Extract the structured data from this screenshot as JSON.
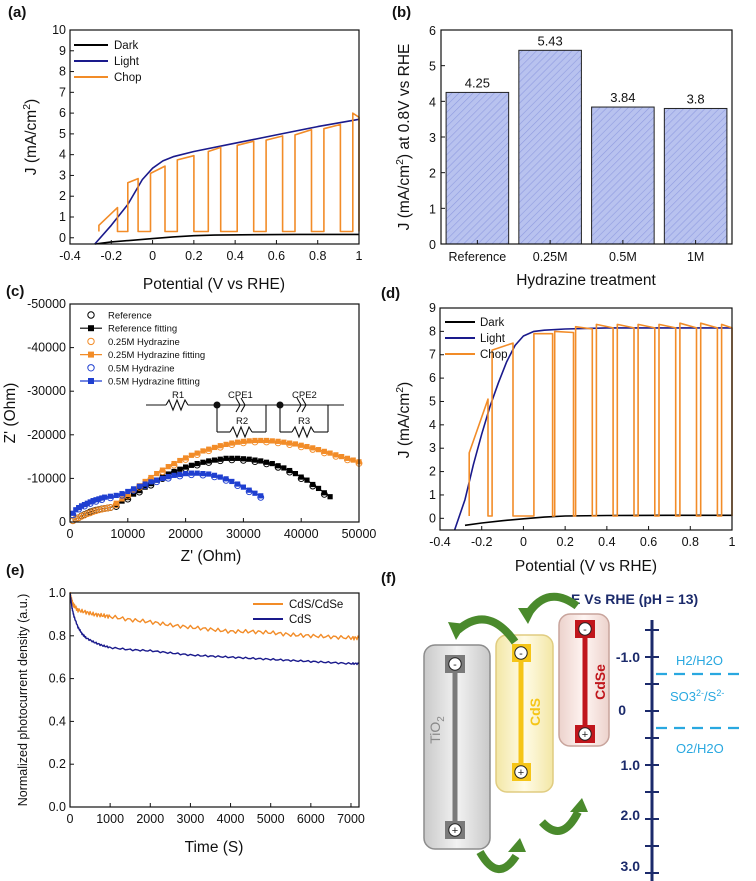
{
  "chart_data": [
    {
      "panel": "(a)",
      "type": "line",
      "xlabel": "Potential (V vs RHE)",
      "ylabel": "J (mA/cm2)",
      "xlim": [
        -0.4,
        1.0
      ],
      "ylim": [
        -0.3,
        10
      ],
      "xticks": [
        -0.4,
        -0.2,
        0,
        0.2,
        0.4,
        0.6,
        0.8,
        1
      ],
      "xtick_labels": [
        "-0.4",
        "-0.2",
        "0",
        "0.2",
        "0.4",
        "0.6",
        "0.8",
        "1"
      ],
      "yticks": [
        0,
        1,
        2,
        3,
        4,
        5,
        6,
        7,
        8,
        9,
        10
      ],
      "ytick_labels": [
        "0",
        "1",
        "2",
        "3",
        "4",
        "5",
        "6",
        "7",
        "8",
        "9",
        "10"
      ],
      "legend": [
        "Dark",
        "Light",
        "Chop"
      ],
      "colors": {
        "Dark": "#000000",
        "Light": "#1a1a8c",
        "Chop": "#f28c28"
      },
      "series": [
        {
          "name": "Dark",
          "x": [
            -0.28,
            -0.2,
            -0.1,
            0,
            0.1,
            0.2,
            0.3,
            0.5,
            0.7,
            1.0
          ],
          "y": [
            -0.3,
            -0.2,
            -0.12,
            -0.04,
            0.04,
            0.1,
            0.13,
            0.15,
            0.16,
            0.16
          ]
        },
        {
          "name": "Light",
          "x": [
            -0.28,
            -0.2,
            -0.12,
            -0.05,
            0,
            0.05,
            0.1,
            0.2,
            0.4,
            0.6,
            0.8,
            1.0
          ],
          "y": [
            -0.3,
            0.6,
            1.6,
            2.8,
            3.35,
            3.7,
            3.9,
            4.15,
            4.55,
            4.95,
            5.35,
            5.7
          ]
        },
        {
          "name": "Chop",
          "on": [
            [
              -0.26,
              -0.17
            ],
            [
              -0.12,
              -0.07
            ],
            [
              -0.01,
              0.06
            ],
            [
              0.12,
              0.2
            ],
            [
              0.27,
              0.33
            ],
            [
              0.41,
              0.49
            ],
            [
              0.55,
              0.63
            ],
            [
              0.69,
              0.77
            ],
            [
              0.83,
              0.91
            ],
            [
              0.97,
              1.0
            ]
          ],
          "on_y": [
            [
              0.6,
              1.45
            ],
            [
              2.65,
              2.85
            ],
            [
              3.1,
              3.45
            ],
            [
              3.75,
              3.95
            ],
            [
              4.15,
              4.35
            ],
            [
              4.45,
              4.65
            ],
            [
              4.7,
              4.9
            ],
            [
              4.95,
              5.2
            ],
            [
              5.25,
              5.45
            ],
            [
              6.0,
              5.8
            ]
          ],
          "off_y": 0.3
        }
      ]
    },
    {
      "panel": "(b)",
      "type": "bar",
      "xlabel": "Hydrazine treatment",
      "ylabel": "J (mA/cm2) at 0.8V vs RHE",
      "categories": [
        "Reference",
        "0.25M",
        "0.5M",
        "1M"
      ],
      "values": [
        4.25,
        5.43,
        3.84,
        3.8
      ],
      "value_labels": [
        "4.25",
        "5.43",
        "3.84",
        "3.8"
      ],
      "ylim": [
        0,
        6
      ],
      "yticks": [
        0,
        1,
        2,
        3,
        4,
        5,
        6
      ],
      "ytick_labels": [
        "0",
        "1",
        "2",
        "3",
        "4",
        "5",
        "6"
      ],
      "bar_color": "#a9b4e8"
    },
    {
      "panel": "(c)",
      "type": "scatter",
      "xlabel": "Z' (Ohm)",
      "ylabel": "Z' (Ohm)",
      "xlim": [
        0,
        50000
      ],
      "ylim": [
        0,
        -50000
      ],
      "xticks": [
        0,
        10000,
        20000,
        30000,
        40000,
        50000
      ],
      "xtick_labels": [
        "0",
        "10000",
        "20000",
        "30000",
        "40000",
        "50000"
      ],
      "yticks": [
        0,
        -10000,
        -20000,
        -30000,
        -40000,
        -50000
      ],
      "ytick_labels": [
        "0",
        "-10000",
        "-20000",
        "-30000",
        "-40000",
        "-50000"
      ],
      "legend": [
        "Reference",
        "Reference fitting",
        "0.25M Hydrazine",
        "0.25M Hydrazine fitting",
        "0.5M Hydrazine",
        "0.5M Hydrazine fitting"
      ],
      "colors": {
        "Reference": "#000000",
        "0.25M": "#f28c28",
        "0.5M": "#1f3fd0"
      },
      "circuit": {
        "elements": [
          "R1",
          "CPE1",
          "R2",
          "CPE2",
          "R3"
        ]
      },
      "series": [
        {
          "name": "Reference",
          "x": [
            500,
            1000,
            1500,
            2000,
            2500,
            3000,
            3500,
            4000,
            4500,
            5000,
            5500,
            6000,
            6500,
            7000,
            8000,
            9000,
            10000,
            11000,
            12000,
            13000,
            14000,
            15000,
            16000,
            17000,
            18000,
            19000,
            20000,
            21000,
            22000,
            23000,
            24000,
            25000,
            26000,
            27000,
            28000,
            29000,
            30000,
            31000,
            32000,
            33000,
            34000,
            35000,
            36000,
            37000,
            38000,
            39000,
            40000,
            41000,
            42000,
            43000,
            44000,
            45000
          ],
          "y": [
            -300,
            -700,
            -1000,
            -1400,
            -1700,
            -2000,
            -2300,
            -2500,
            -2700,
            -2850,
            -3000,
            -3100,
            -3200,
            -3300,
            -3900,
            -4800,
            -5600,
            -6400,
            -7200,
            -8000,
            -8800,
            -9600,
            -10300,
            -11000,
            -11600,
            -12100,
            -12600,
            -13000,
            -13400,
            -13700,
            -14000,
            -14200,
            -14400,
            -14600,
            -14600,
            -14600,
            -14500,
            -14400,
            -14200,
            -14000,
            -13700,
            -13400,
            -12900,
            -12400,
            -11800,
            -11100,
            -10300,
            -9600,
            -8600,
            -7700,
            -6700,
            -5800
          ]
        },
        {
          "name": "0.25M Hydrazine",
          "x": [
            500,
            1000,
            1500,
            2000,
            2500,
            3000,
            3500,
            4000,
            4500,
            5000,
            5500,
            6000,
            6500,
            7000,
            8000,
            9000,
            10000,
            11000,
            12000,
            13000,
            14000,
            15000,
            16000,
            17000,
            18000,
            19000,
            20000,
            21000,
            22000,
            23000,
            24000,
            25000,
            26000,
            27000,
            28000,
            29000,
            30000,
            31000,
            32000,
            33000,
            34000,
            35000,
            36000,
            37000,
            38000,
            39000,
            40000,
            41000,
            42000,
            43000,
            44000,
            45000,
            46000,
            47000,
            48000,
            49000,
            50000
          ],
          "y": [
            -300,
            -700,
            -1000,
            -1300,
            -1600,
            -1900,
            -2100,
            -2400,
            -2600,
            -2800,
            -2950,
            -3100,
            -3200,
            -3350,
            -4300,
            -5300,
            -6300,
            -7300,
            -8300,
            -9300,
            -10200,
            -11100,
            -11900,
            -12700,
            -13400,
            -14100,
            -14700,
            -15300,
            -15800,
            -16300,
            -16700,
            -17100,
            -17500,
            -17800,
            -18100,
            -18300,
            -18500,
            -18600,
            -18700,
            -18700,
            -18700,
            -18600,
            -18500,
            -18300,
            -18100,
            -17900,
            -17600,
            -17300,
            -17000,
            -16600,
            -16200,
            -15800,
            -15400,
            -15000,
            -14600,
            -14200,
            -13800
          ]
        },
        {
          "name": "0.5M Hydrazine",
          "x": [
            500,
            1000,
            1500,
            2000,
            2500,
            3000,
            3500,
            4000,
            4500,
            5000,
            5500,
            6000,
            7000,
            8000,
            9000,
            10000,
            11000,
            12000,
            13000,
            14000,
            15000,
            16000,
            17000,
            18000,
            19000,
            20000,
            21000,
            22000,
            23000,
            24000,
            25000,
            26000,
            27000,
            28000,
            29000,
            30000,
            31000,
            32000,
            33000
          ],
          "y": [
            -2000,
            -2800,
            -3300,
            -3700,
            -4000,
            -4300,
            -4600,
            -4900,
            -5100,
            -5300,
            -5500,
            -5700,
            -5900,
            -6100,
            -6500,
            -7000,
            -7600,
            -8200,
            -8700,
            -9200,
            -9600,
            -10000,
            -10400,
            -10700,
            -10900,
            -11100,
            -11200,
            -11200,
            -11100,
            -11000,
            -10700,
            -10300,
            -9900,
            -9300,
            -8700,
            -8000,
            -7300,
            -6600,
            -6000
          ]
        }
      ]
    },
    {
      "panel": "(d)",
      "type": "line",
      "xlabel": "Potential (V vs RHE)",
      "ylabel": "J (mA/cm2)",
      "xlim": [
        -0.4,
        1.0
      ],
      "ylim": [
        -0.5,
        9
      ],
      "xticks": [
        -0.4,
        -0.2,
        0,
        0.2,
        0.4,
        0.6,
        0.8,
        1
      ],
      "xtick_labels": [
        "-0.4",
        "-0.2",
        "0",
        "0.2",
        "0.4",
        "0.6",
        "0.8",
        "1"
      ],
      "yticks": [
        0,
        1,
        2,
        3,
        4,
        5,
        6,
        7,
        8,
        9
      ],
      "ytick_labels": [
        "0",
        "1",
        "2",
        "3",
        "4",
        "5",
        "6",
        "7",
        "8",
        "9"
      ],
      "legend": [
        "Dark",
        "Light",
        "Chop"
      ],
      "colors": {
        "Dark": "#000000",
        "Light": "#1a1a8c",
        "Chop": "#f28c28"
      },
      "series": [
        {
          "name": "Dark",
          "x": [
            -0.28,
            -0.2,
            -0.1,
            0,
            0.1,
            0.2,
            0.4,
            0.7,
            1.0
          ],
          "y": [
            -0.3,
            -0.2,
            -0.1,
            -0.02,
            0.05,
            0.1,
            0.12,
            0.13,
            0.13
          ]
        },
        {
          "name": "Light",
          "x": [
            -0.33,
            -0.28,
            -0.24,
            -0.2,
            -0.16,
            -0.12,
            -0.08,
            -0.04,
            0,
            0.05,
            0.1,
            0.2,
            0.4,
            0.7,
            1.0
          ],
          "y": [
            -0.5,
            0.8,
            2.3,
            3.6,
            4.8,
            5.8,
            6.7,
            7.4,
            7.8,
            8.0,
            8.05,
            8.1,
            8.15,
            8.15,
            8.15
          ]
        },
        {
          "name": "Chop",
          "on": [
            [
              -0.26,
              -0.17
            ],
            [
              -0.15,
              -0.05
            ],
            [
              0.05,
              0.14
            ],
            [
              0.15,
              0.24
            ],
            [
              0.25,
              0.33
            ],
            [
              0.35,
              0.43
            ],
            [
              0.45,
              0.53
            ],
            [
              0.55,
              0.63
            ],
            [
              0.65,
              0.73
            ],
            [
              0.75,
              0.83
            ],
            [
              0.85,
              0.93
            ],
            [
              0.95,
              1.0
            ]
          ],
          "on_y": [
            [
              2.8,
              5.1
            ],
            [
              7.2,
              7.5
            ],
            [
              7.9,
              7.9
            ],
            [
              8.0,
              7.95
            ],
            [
              8.2,
              8.1
            ],
            [
              8.3,
              8.15
            ],
            [
              8.3,
              8.15
            ],
            [
              8.3,
              8.15
            ],
            [
              8.3,
              8.15
            ],
            [
              8.35,
              8.15
            ],
            [
              8.35,
              8.15
            ],
            [
              8.3,
              8.15
            ]
          ],
          "off_y": 0.1
        }
      ]
    },
    {
      "panel": "(e)",
      "type": "line",
      "xlabel": "Time (S)",
      "ylabel": "Normalized photocurrent density (a.u.)",
      "xlim": [
        0,
        7200
      ],
      "ylim": [
        0,
        1.0
      ],
      "xticks": [
        0,
        1000,
        2000,
        3000,
        4000,
        5000,
        6000,
        7000
      ],
      "xtick_labels": [
        "0",
        "1000",
        "2000",
        "3000",
        "4000",
        "5000",
        "6000",
        "7000"
      ],
      "yticks": [
        0,
        0.2,
        0.4,
        0.6,
        0.8,
        1.0
      ],
      "ytick_labels": [
        "0.0",
        "0.2",
        "0.4",
        "0.6",
        "0.8",
        "1.0"
      ],
      "legend": [
        "CdS/CdSe",
        "CdS"
      ],
      "colors": {
        "CdS/CdSe": "#f28c28",
        "CdS": "#1a1a8c"
      },
      "series": [
        {
          "name": "CdS/CdSe",
          "x": [
            0,
            50,
            100,
            200,
            400,
            600,
            800,
            1000,
            1500,
            2000,
            2500,
            3000,
            3500,
            4000,
            4500,
            5000,
            5500,
            6000,
            6500,
            7000,
            7200
          ],
          "y": [
            1.0,
            0.96,
            0.94,
            0.92,
            0.91,
            0.9,
            0.895,
            0.89,
            0.875,
            0.865,
            0.85,
            0.84,
            0.83,
            0.82,
            0.82,
            0.815,
            0.805,
            0.8,
            0.795,
            0.79,
            0.79
          ]
        },
        {
          "name": "CdS",
          "x": [
            0,
            50,
            100,
            200,
            300,
            400,
            600,
            800,
            1000,
            1500,
            2000,
            2500,
            3000,
            3500,
            4000,
            4500,
            5000,
            5500,
            6000,
            6500,
            7000,
            7200
          ],
          "y": [
            1.0,
            0.93,
            0.89,
            0.84,
            0.81,
            0.79,
            0.77,
            0.755,
            0.745,
            0.735,
            0.73,
            0.72,
            0.71,
            0.705,
            0.7,
            0.695,
            0.69,
            0.685,
            0.68,
            0.675,
            0.67,
            0.67
          ]
        }
      ]
    },
    {
      "panel": "(f)",
      "type": "diagram",
      "title": "E Vs RHE (pH = 13)",
      "scale_labels": [
        "-1.0",
        "0",
        "1.0",
        "2.0",
        "3.0"
      ],
      "redox_labels": {
        "h2": "H2/H2O",
        "so3_a": "SO3",
        "so3_b": "2-",
        "so3_c": "/S",
        "so3_d": "2-",
        "o2": "O2/H2O"
      },
      "materials": [
        "TiO2",
        "CdS",
        "CdSe"
      ],
      "colors": {
        "TiO2": "#8a8a8a",
        "CdS": "#f5c518",
        "CdSe": "#c0161c",
        "axis": "#1b2a6b",
        "redox": "#29a8e0",
        "arrow": "#4a8a2c"
      }
    }
  ],
  "panel_labels": [
    "(a)",
    "(b)",
    "(c)",
    "(d)",
    "(e)",
    "(f)"
  ],
  "text": {
    "ja": "J (mA/cm",
    "sup2": "2",
    "jclose": ")",
    "jb_pre": "J (mA/cm",
    "jb_post": ") at 0.8V vs RHE",
    "zx": "Z' (Ohm)",
    "zy": "Z' (Ohm)",
    "e_ylabel": "Normalized photocurrent density (a.u.)",
    "tio2_main": "TiO",
    "tio2_sub": "2",
    "minus": "-",
    "plus": "+"
  }
}
